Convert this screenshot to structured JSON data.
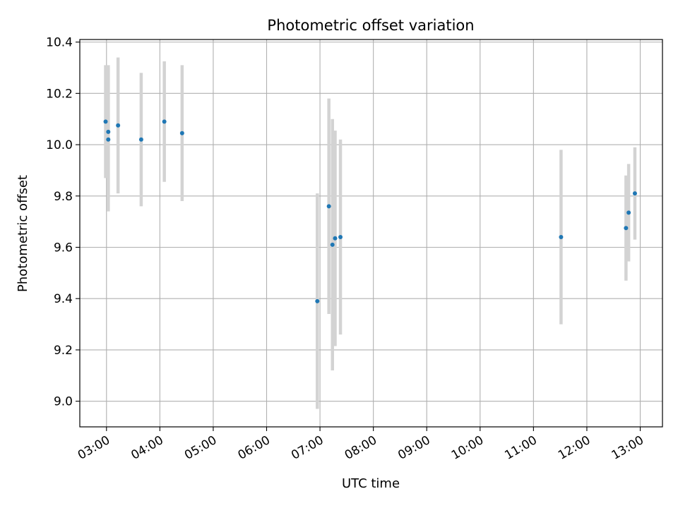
{
  "chart_data": {
    "type": "scatter",
    "title": "Photometric offset variation",
    "xlabel": "UTC time",
    "ylabel": "Photometric offset",
    "xlim": [
      "02:30",
      "13:25"
    ],
    "ylim": [
      8.9,
      10.41
    ],
    "x_ticks": [
      "03:00",
      "04:00",
      "05:00",
      "06:00",
      "07:00",
      "08:00",
      "09:00",
      "10:00",
      "11:00",
      "12:00",
      "13:00"
    ],
    "y_ticks": [
      "9.0",
      "9.2",
      "9.4",
      "9.6",
      "9.8",
      "10.0",
      "10.2",
      "10.4"
    ],
    "grid": true,
    "colors": {
      "points": "#1f77b4",
      "error_bars": "#d3d3d3",
      "grid": "#b0b0b0"
    },
    "points": [
      {
        "x": "02:59",
        "y": 10.09,
        "err": 0.22
      },
      {
        "x": "03:02",
        "y": 10.05,
        "err": 0.26
      },
      {
        "x": "03:02",
        "y": 10.02,
        "err": 0.28
      },
      {
        "x": "03:13",
        "y": 10.075,
        "err": 0.265
      },
      {
        "x": "03:39",
        "y": 10.02,
        "err": 0.26
      },
      {
        "x": "04:05",
        "y": 10.09,
        "err": 0.235
      },
      {
        "x": "04:25",
        "y": 10.045,
        "err": 0.265
      },
      {
        "x": "06:57",
        "y": 9.39,
        "err": 0.42
      },
      {
        "x": "07:10",
        "y": 9.76,
        "err": 0.42
      },
      {
        "x": "07:14",
        "y": 9.61,
        "err": 0.49
      },
      {
        "x": "07:17",
        "y": 9.635,
        "err": 0.42
      },
      {
        "x": "07:23",
        "y": 9.64,
        "err": 0.38
      },
      {
        "x": "11:31",
        "y": 9.64,
        "err": 0.34
      },
      {
        "x": "12:44",
        "y": 9.675,
        "err": 0.205
      },
      {
        "x": "12:47",
        "y": 9.735,
        "err": 0.19
      },
      {
        "x": "12:54",
        "y": 9.81,
        "err": 0.18
      }
    ]
  }
}
